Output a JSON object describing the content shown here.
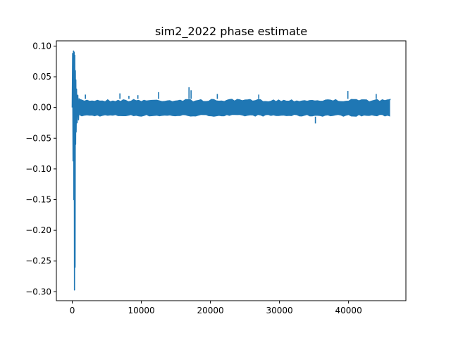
{
  "chart_data": {
    "type": "line",
    "title": "sim2_2022 phase estimate",
    "xlabel": "",
    "ylabel": "",
    "xlim": [
      -2300,
      48300
    ],
    "ylim": [
      -0.3145,
      0.1085
    ],
    "x_ticks": [
      {
        "value": 0,
        "label": "0"
      },
      {
        "value": 10000,
        "label": "10000"
      },
      {
        "value": 20000,
        "label": "20000"
      },
      {
        "value": 30000,
        "label": "30000"
      },
      {
        "value": 40000,
        "label": "40000"
      }
    ],
    "y_ticks": [
      {
        "value": 0.1,
        "label": "0.10"
      },
      {
        "value": 0.05,
        "label": "0.05"
      },
      {
        "value": 0.0,
        "label": "0.00"
      },
      {
        "value": -0.05,
        "label": "−0.05"
      },
      {
        "value": -0.1,
        "label": "−0.10"
      },
      {
        "value": -0.15,
        "label": "−0.15"
      },
      {
        "value": -0.2,
        "label": "−0.20"
      },
      {
        "value": -0.25,
        "label": "−0.25"
      },
      {
        "value": -0.3,
        "label": "−0.30"
      }
    ],
    "grid": false,
    "legend": "none",
    "series": [
      {
        "color": "#1f77b4",
        "x_range": [
          0,
          46000
        ],
        "steady_band": [
          -0.015,
          0.014
        ],
        "points": [
          [
            0,
            0.0
          ],
          [
            60,
            0.088
          ],
          [
            120,
            -0.087
          ],
          [
            180,
            0.092
          ],
          [
            230,
            -0.15
          ],
          [
            280,
            0.09
          ],
          [
            320,
            -0.297
          ],
          [
            360,
            0.085
          ],
          [
            400,
            -0.26
          ],
          [
            440,
            0.06
          ],
          [
            480,
            -0.06
          ],
          [
            520,
            0.045
          ],
          [
            560,
            -0.04
          ],
          [
            620,
            0.03
          ],
          [
            700,
            -0.025
          ],
          [
            800,
            0.02
          ],
          [
            900,
            -0.02
          ],
          [
            1000,
            0.015
          ]
        ],
        "spikes": [
          [
            1900,
            0.021
          ],
          [
            2700,
            0.014
          ],
          [
            6900,
            0.023
          ],
          [
            8200,
            0.019
          ],
          [
            9500,
            0.02
          ],
          [
            12500,
            0.025
          ],
          [
            16900,
            0.033
          ],
          [
            17200,
            0.028
          ],
          [
            21000,
            0.022
          ],
          [
            27000,
            0.021
          ],
          [
            35200,
            -0.026
          ],
          [
            39900,
            0.027
          ],
          [
            44000,
            0.022
          ],
          [
            46000,
            0.012
          ]
        ]
      }
    ]
  }
}
